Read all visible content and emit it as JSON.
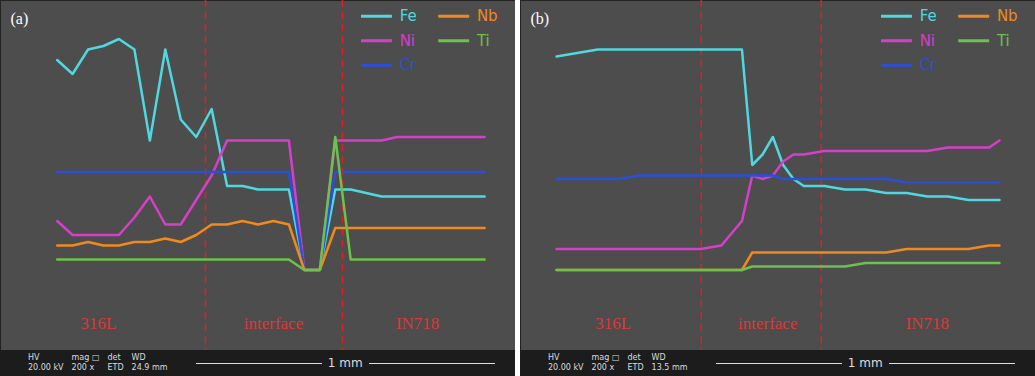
{
  "chart_data": [
    {
      "type": "line",
      "title": "(a)",
      "tick_labels": false,
      "legend": "top-right",
      "xlim": [
        0,
        100
      ],
      "ylim": [
        0,
        100
      ],
      "x": [
        11,
        14,
        17,
        20,
        23,
        26,
        29,
        32,
        35,
        38,
        41,
        44,
        47,
        50,
        53,
        56,
        59,
        62,
        65,
        68,
        71,
        74,
        77,
        80,
        83,
        86,
        89,
        92,
        94
      ],
      "series": [
        {
          "name": "Fe",
          "color": "#4fd8e0",
          "values": [
            83,
            79,
            86,
            87,
            89,
            86,
            60,
            86,
            66,
            61,
            69,
            47,
            47,
            46,
            46,
            46,
            23,
            23,
            46,
            46,
            45,
            44,
            44,
            44,
            44,
            44,
            44,
            44,
            44
          ]
        },
        {
          "name": "Ni",
          "color": "#d63fc9",
          "values": [
            37,
            33,
            33,
            33,
            33,
            38,
            44,
            36,
            36,
            43,
            50,
            60,
            60,
            60,
            60,
            60,
            23,
            23,
            60,
            60,
            60,
            60,
            61,
            61,
            61,
            61,
            61,
            61,
            61
          ]
        },
        {
          "name": "Cr",
          "color": "#2a4fd8",
          "values": [
            51,
            51,
            51,
            51,
            51,
            51,
            51,
            51,
            51,
            51,
            51,
            51,
            51,
            51,
            51,
            51,
            23,
            23,
            51,
            51,
            51,
            51,
            51,
            51,
            51,
            51,
            51,
            51,
            51
          ]
        },
        {
          "name": "Nb",
          "color": "#f08a1c",
          "values": [
            30,
            30,
            31,
            30,
            30,
            31,
            31,
            32,
            31,
            33,
            36,
            36,
            37,
            36,
            37,
            36,
            23,
            23,
            35,
            35,
            35,
            35,
            35,
            35,
            35,
            35,
            35,
            35,
            35
          ]
        },
        {
          "name": "Ti",
          "color": "#6cc24a",
          "values": [
            26,
            26,
            26,
            26,
            26,
            26,
            26,
            26,
            26,
            26,
            26,
            26,
            26,
            26,
            26,
            26,
            23,
            23,
            61,
            26,
            26,
            26,
            26,
            26,
            26,
            26,
            26,
            26,
            26
          ]
        }
      ],
      "boundaries": [
        39.8,
        66.4
      ],
      "regions": [
        {
          "label": "316L",
          "x": 19
        },
        {
          "label": "interface",
          "x": 53
        },
        {
          "label": "IN718",
          "x": 81
        }
      ],
      "scale_bar": "1 mm",
      "info_bar": [
        [
          "HV",
          "20.00 kV"
        ],
        [
          "mag □",
          "200 x"
        ],
        [
          "det",
          "ETD"
        ],
        [
          "WD",
          "24.9 mm"
        ]
      ]
    },
    {
      "type": "line",
      "title": "(b)",
      "tick_labels": false,
      "legend": "top-right",
      "xlim": [
        0,
        100
      ],
      "ylim": [
        0,
        100
      ],
      "x": [
        7,
        11,
        15,
        19,
        23,
        27,
        31,
        35,
        39,
        43,
        45,
        47,
        49,
        51,
        53,
        55,
        59,
        63,
        67,
        71,
        75,
        79,
        83,
        87,
        91,
        93
      ],
      "series": [
        {
          "name": "Fe",
          "color": "#4fd8e0",
          "values": [
            84,
            85,
            86,
            86,
            86,
            86,
            86,
            86,
            86,
            86,
            53,
            56,
            61,
            53,
            49,
            47,
            47,
            46,
            46,
            45,
            45,
            44,
            44,
            43,
            43,
            43
          ]
        },
        {
          "name": "Ni",
          "color": "#d63fc9",
          "values": [
            29,
            29,
            29,
            29,
            29,
            29,
            29,
            29,
            30,
            37,
            50,
            49,
            50,
            54,
            56,
            56,
            57,
            57,
            57,
            57,
            57,
            57,
            58,
            58,
            58,
            60
          ]
        },
        {
          "name": "Cr",
          "color": "#2a4fd8",
          "values": [
            49,
            49,
            49,
            49,
            50,
            50,
            50,
            50,
            50,
            50,
            50,
            50,
            50,
            49,
            49,
            49,
            49,
            49,
            49,
            49,
            48,
            48,
            48,
            48,
            48,
            48
          ]
        },
        {
          "name": "Nb",
          "color": "#f08a1c",
          "values": [
            23,
            23,
            23,
            23,
            23,
            23,
            23,
            23,
            23,
            23,
            28,
            28,
            28,
            28,
            28,
            28,
            28,
            28,
            28,
            28,
            29,
            29,
            29,
            29,
            30,
            30
          ]
        },
        {
          "name": "Ti",
          "color": "#6cc24a",
          "values": [
            23,
            23,
            23,
            23,
            23,
            23,
            23,
            23,
            23,
            23,
            24,
            24,
            24,
            24,
            24,
            24,
            24,
            24,
            25,
            25,
            25,
            25,
            25,
            25,
            25,
            25
          ]
        }
      ],
      "boundaries": [
        35.1,
        58.4
      ],
      "regions": [
        {
          "label": "316L",
          "x": 18
        },
        {
          "label": "interface",
          "x": 48
        },
        {
          "label": "IN718",
          "x": 79
        }
      ],
      "scale_bar": "1 mm",
      "info_bar": [
        [
          "HV",
          "20.00 kV"
        ],
        [
          "mag □",
          "200 x"
        ],
        [
          "det",
          "ETD"
        ],
        [
          "WD",
          "13.5 mm"
        ]
      ]
    }
  ]
}
